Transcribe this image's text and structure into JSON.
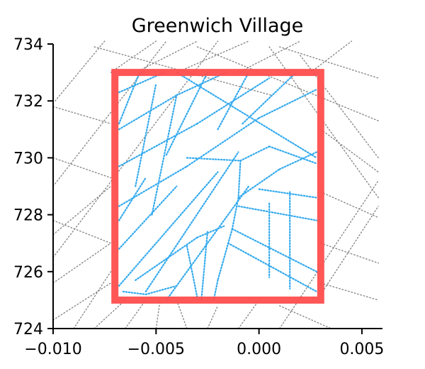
{
  "chart_data": {
    "type": "scatter",
    "title": "Greenwich Village",
    "xlabel": "",
    "ylabel": "",
    "xlim": [
      -0.01,
      0.006
    ],
    "ylim": [
      724,
      734
    ],
    "x_ticks": [
      -0.01,
      -0.005,
      0.0,
      0.005
    ],
    "x_tick_labels": [
      "−0.010",
      "−0.005",
      "0.000",
      "0.005"
    ],
    "y_ticks": [
      724,
      726,
      728,
      730,
      732,
      734
    ],
    "y_tick_labels": [
      "724",
      "726",
      "728",
      "730",
      "732",
      "734"
    ],
    "grid": false,
    "legend": "none",
    "neighborhood_box": {
      "x0": -0.007,
      "x1": 0.003,
      "y0": 725,
      "y1": 733
    },
    "colors": {
      "box": "#ff4d4d",
      "inside_streets": "#33aaee",
      "outside_streets": "#888888",
      "axis": "#000000"
    },
    "series": [
      {
        "role": "streets-outside",
        "segments": [
          [
            [
              -0.0099,
              732.0
            ],
            [
              -0.0075,
              734.1
            ]
          ],
          [
            [
              -0.01,
              729.0
            ],
            [
              -0.0045,
              734.1
            ]
          ],
          [
            [
              -0.01,
              726.5
            ],
            [
              -0.002,
              734.1
            ]
          ],
          [
            [
              -0.008,
              733.9
            ],
            [
              0.0006,
              732.2
            ]
          ],
          [
            [
              -0.003,
              733.9
            ],
            [
              0.0058,
              731.3
            ]
          ],
          [
            [
              0.001,
              733.9
            ],
            [
              0.0058,
              732.8
            ]
          ],
          [
            [
              0.002,
              733.6
            ],
            [
              0.0058,
              730.0
            ]
          ],
          [
            [
              0.0005,
              733.9
            ],
            [
              0.0058,
              728.6
            ]
          ],
          [
            [
              0.003,
              731.0
            ],
            [
              0.0058,
              729.5
            ]
          ],
          [
            [
              0.003,
              728.8
            ],
            [
              0.0058,
              727.9
            ]
          ],
          [
            [
              0.003,
              727.0
            ],
            [
              0.0058,
              726.3
            ]
          ],
          [
            [
              0.003,
              725.6
            ],
            [
              0.0058,
              725.0
            ]
          ],
          [
            [
              0.003,
              725.2
            ],
            [
              0.0058,
              728.3
            ]
          ],
          [
            [
              0.001,
              724.0
            ],
            [
              0.0058,
              729.2
            ]
          ],
          [
            [
              -0.0025,
              724.0
            ],
            [
              -0.002,
              724.8
            ]
          ],
          [
            [
              -0.0035,
              724.0
            ],
            [
              -0.004,
              725.0
            ]
          ],
          [
            [
              -0.005,
              724.0
            ],
            [
              -0.0048,
              725.0
            ]
          ],
          [
            [
              -0.01,
              724.3
            ],
            [
              -0.0072,
              725.6
            ]
          ],
          [
            [
              -0.01,
              727.8
            ],
            [
              -0.0072,
              727.0
            ]
          ],
          [
            [
              -0.01,
              730.0
            ],
            [
              -0.0072,
              729.3
            ]
          ],
          [
            [
              -0.01,
              731.8
            ],
            [
              -0.0072,
              731.2
            ]
          ],
          [
            [
              -0.01,
              725.6
            ],
            [
              -0.0072,
              727.0
            ]
          ],
          [
            [
              -0.01,
              727.3
            ],
            [
              -0.0072,
              729.0
            ]
          ],
          [
            [
              -0.009,
              724.0
            ],
            [
              -0.0072,
              726.0
            ]
          ],
          [
            [
              -0.008,
              724.0
            ],
            [
              -0.0065,
              725.0
            ]
          ],
          [
            [
              -0.0065,
              724.0
            ],
            [
              -0.0055,
              725.0
            ]
          ],
          [
            [
              -0.0072,
              733.0
            ],
            [
              -0.005,
              734.1
            ]
          ],
          [
            [
              -0.006,
              733.0
            ],
            [
              -0.003,
              734.1
            ]
          ],
          [
            [
              -0.004,
              733.0
            ],
            [
              -0.0005,
              734.1
            ]
          ],
          [
            [
              -0.001,
              733.0
            ],
            [
              0.002,
              734.1
            ]
          ],
          [
            [
              0.0025,
              733.0
            ],
            [
              0.0045,
              734.1
            ]
          ],
          [
            [
              -0.001,
              724.0
            ],
            [
              0.0,
              725.0
            ]
          ],
          [
            [
              0.001,
              724.8
            ],
            [
              0.0035,
              724.0
            ]
          ]
        ]
      },
      {
        "role": "streets-inside",
        "segments": [
          [
            [
              -0.0068,
              732.3
            ],
            [
              -0.0046,
              733.0
            ]
          ],
          [
            [
              -0.0068,
              731.0
            ],
            [
              -0.004,
              732.2
            ]
          ],
          [
            [
              -0.004,
              732.2
            ],
            [
              -0.0016,
              733.0
            ]
          ],
          [
            [
              -0.0068,
              729.7
            ],
            [
              -0.003,
              731.2
            ]
          ],
          [
            [
              -0.003,
              731.2
            ],
            [
              0.0005,
              732.8
            ]
          ],
          [
            [
              -0.0068,
              728.3
            ],
            [
              -0.0035,
              729.7
            ]
          ],
          [
            [
              -0.0035,
              729.7
            ],
            [
              0.0,
              731.4
            ]
          ],
          [
            [
              0.0,
              731.4
            ],
            [
              0.0028,
              732.4
            ]
          ],
          [
            [
              -0.004,
              733.0
            ],
            [
              0.0028,
              730.0
            ]
          ],
          [
            [
              -0.0068,
              731.2
            ],
            [
              -0.0058,
              733.0
            ]
          ],
          [
            [
              -0.006,
              729.0
            ],
            [
              -0.005,
              732.6
            ]
          ],
          [
            [
              -0.0052,
              728.0
            ],
            [
              -0.004,
              732.2
            ]
          ],
          [
            [
              -0.0045,
              730.1
            ],
            [
              -0.0025,
              733.0
            ]
          ],
          [
            [
              -0.002,
              731.0
            ],
            [
              -0.0005,
              733.0
            ]
          ],
          [
            [
              -0.0008,
              731.2
            ],
            [
              0.0018,
              733.0
            ]
          ],
          [
            [
              -0.0068,
              726.8
            ],
            [
              -0.004,
              729.0
            ]
          ],
          [
            [
              -0.0068,
              725.5
            ],
            [
              -0.002,
              729.5
            ]
          ],
          [
            [
              -0.0055,
              725.3
            ],
            [
              -0.001,
              730.2
            ]
          ],
          [
            [
              -0.0045,
              725.0
            ],
            [
              -0.0005,
              729.0
            ]
          ],
          [
            [
              -0.0068,
              727.8
            ],
            [
              -0.0055,
              729.3
            ]
          ],
          [
            [
              -0.0035,
              730.0
            ],
            [
              -0.0009,
              729.9
            ]
          ],
          [
            [
              -0.0009,
              729.9
            ],
            [
              0.0005,
              730.4
            ]
          ],
          [
            [
              0.0005,
              730.4
            ],
            [
              0.0028,
              729.8
            ]
          ],
          [
            [
              -0.0009,
              729.9
            ],
            [
              -0.001,
              728.6
            ]
          ],
          [
            [
              -0.001,
              728.6
            ],
            [
              -0.0013,
              727.5
            ]
          ],
          [
            [
              -0.0013,
              727.5
            ],
            [
              -0.002,
              725.7
            ]
          ],
          [
            [
              -0.002,
              725.7
            ],
            [
              -0.0022,
              725.0
            ]
          ],
          [
            [
              -0.001,
              728.6
            ],
            [
              0.001,
              729.6
            ]
          ],
          [
            [
              0.001,
              729.6
            ],
            [
              0.0028,
              730.2
            ]
          ],
          [
            [
              -0.0013,
              727.5
            ],
            [
              0.0028,
              726.0
            ]
          ],
          [
            [
              -0.001,
              728.3
            ],
            [
              0.0028,
              727.8
            ]
          ],
          [
            [
              0.0,
              728.9
            ],
            [
              0.0028,
              728.6
            ]
          ],
          [
            [
              -0.0015,
              727.0
            ],
            [
              0.0028,
              725.3
            ]
          ],
          [
            [
              -0.006,
              725.7
            ],
            [
              -0.003,
              727.2
            ]
          ],
          [
            [
              -0.003,
              727.2
            ],
            [
              -0.0017,
              727.6
            ]
          ],
          [
            [
              -0.0066,
              725.3
            ],
            [
              -0.0055,
              725.2
            ]
          ],
          [
            [
              -0.0055,
              725.2
            ],
            [
              -0.004,
              725.5
            ]
          ],
          [
            [
              0.0005,
              728.4
            ],
            [
              0.0005,
              725.8
            ]
          ],
          [
            [
              0.0015,
              728.8
            ],
            [
              0.0015,
              725.4
            ]
          ],
          [
            [
              -0.0035,
              726.9
            ],
            [
              -0.003,
              725.1
            ]
          ],
          [
            [
              -0.0025,
              727.4
            ],
            [
              -0.0028,
              725.0
            ]
          ]
        ]
      }
    ]
  }
}
